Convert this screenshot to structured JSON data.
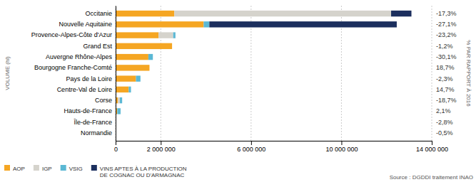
{
  "chart_data": {
    "type": "bar",
    "orientation": "horizontal",
    "stacked": true,
    "categories": [
      "Occitanie",
      "Nouvelle Aquitaine",
      "Provence-Alpes-Côte d'Azur",
      "Grand Est",
      "Auvergne Rhône-Alpes",
      "Bourgogne Franche-Comté",
      "Pays de la Loire",
      "Centre-Val de Loire",
      "Corse",
      "Hauts-de-France",
      "Île-de-France",
      "Normandie"
    ],
    "series": [
      {
        "name": "AOP",
        "color": "#F5A623",
        "values": [
          2600000,
          3900000,
          1900000,
          2500000,
          1450000,
          1500000,
          900000,
          580000,
          100000,
          70000,
          15000,
          12000
        ]
      },
      {
        "name": "IGP",
        "color": "#D5D3CC",
        "values": [
          9600000,
          0,
          650000,
          0,
          0,
          0,
          0,
          0,
          90000,
          0,
          0,
          0
        ]
      },
      {
        "name": "VSIG",
        "color": "#5BB8D4",
        "values": [
          0,
          250000,
          100000,
          0,
          200000,
          0,
          200000,
          100000,
          100000,
          150000,
          0,
          0
        ]
      },
      {
        "name": "VINS APTES À LA PRODUCTION\nDE COGNAC OU D'ARMAGNAC",
        "color": "#1C2F5E",
        "values": [
          900000,
          8300000,
          0,
          0,
          0,
          0,
          0,
          0,
          0,
          0,
          0,
          0
        ]
      }
    ],
    "annotations": [
      "-17,3%",
      "-27,1%",
      "-23,2%",
      "-1,2%",
      "-30,1%",
      "18,7%",
      "-2,3%",
      "14,7%",
      "-18,7%",
      "2,1%",
      "-2,8%",
      "-0,5%"
    ],
    "ylabel": "VOLUME (hl)",
    "y2label": "% PAR RAPPORT À 2016",
    "source": "Source : DGDDI traitement INAO",
    "xlim": [
      0,
      14000000
    ],
    "xticks": [
      0,
      {
        "value": 2000000,
        "label": "2 000 000"
      },
      {
        "value": 6000000,
        "label": "6 000 000"
      },
      {
        "value": 10000000,
        "label": "10 000 000"
      },
      {
        "value": 14000000,
        "label": "14 000 000"
      }
    ],
    "grid": true,
    "legend": "lower left"
  }
}
